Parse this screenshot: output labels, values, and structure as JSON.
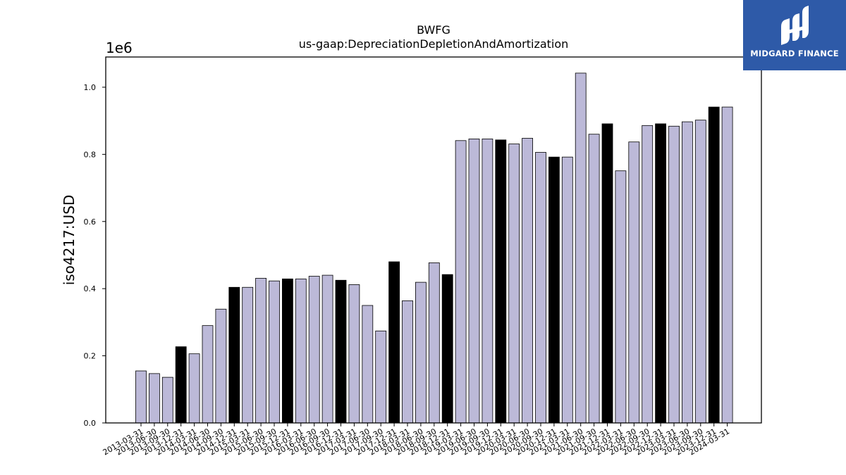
{
  "chart_data": {
    "type": "bar",
    "title": "BWFG",
    "subtitle": "us-gaap:DepreciationDepletionAndAmortization",
    "ylabel": "iso4217:USD",
    "y_offset_label": "1e6",
    "ylim": [
      0,
      1.09
    ],
    "y_ticks": [
      "0.0",
      "0.2",
      "0.4",
      "0.6",
      "0.8",
      "1.0"
    ],
    "colors": {
      "default": "#bcb9d8",
      "highlight": "#000000",
      "edge": "#000000"
    },
    "categories": [
      "2013-03-31",
      "2013-06-30",
      "2013-09-30",
      "2013-12-31",
      "2014-03-31",
      "2014-06-30",
      "2014-09-30",
      "2014-12-31",
      "2015-03-31",
      "2015-06-30",
      "2015-09-30",
      "2015-12-31",
      "2016-03-31",
      "2016-06-30",
      "2016-09-30",
      "2016-12-31",
      "2017-03-31",
      "2017-06-30",
      "2017-09-30",
      "2017-12-31",
      "2018-03-31",
      "2018-06-30",
      "2018-09-30",
      "2018-12-31",
      "2019-03-31",
      "2019-06-30",
      "2019-09-30",
      "2019-12-31",
      "2020-03-31",
      "2020-06-30",
      "2020-09-30",
      "2020-12-31",
      "2021-03-31",
      "2021-06-30",
      "2021-09-30",
      "2021-12-31",
      "2022-03-31",
      "2022-06-30",
      "2022-09-30",
      "2022-12-31",
      "2023-03-31",
      "2023-06-30",
      "2023-09-30",
      "2023-12-31",
      "2024-03-31"
    ],
    "values": [
      0.155,
      0.147,
      0.136,
      0.227,
      0.206,
      0.29,
      0.339,
      0.404,
      0.404,
      0.431,
      0.423,
      0.429,
      0.429,
      0.437,
      0.44,
      0.425,
      0.412,
      0.35,
      0.274,
      0.48,
      0.364,
      0.419,
      0.477,
      0.442,
      0.841,
      0.846,
      0.846,
      0.843,
      0.831,
      0.848,
      0.806,
      0.792,
      0.792,
      1.042,
      0.86,
      0.891,
      0.751,
      0.837,
      0.886,
      0.891,
      0.884,
      0.897,
      0.902,
      0.941,
      0.941
    ],
    "highlight": [
      false,
      false,
      false,
      true,
      false,
      false,
      false,
      true,
      false,
      false,
      false,
      true,
      false,
      false,
      false,
      true,
      false,
      false,
      false,
      true,
      false,
      false,
      false,
      true,
      false,
      false,
      false,
      true,
      false,
      false,
      false,
      true,
      false,
      false,
      false,
      true,
      false,
      false,
      false,
      true,
      false,
      false,
      false,
      true,
      false
    ]
  },
  "logo": {
    "text": "MIDGARD FINANCE"
  }
}
